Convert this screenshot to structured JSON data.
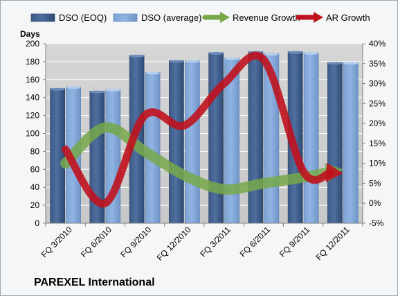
{
  "company_name": "PAREXEL International",
  "colors": {
    "dso_eoq": "#4f6f9f",
    "dso_average": "#8fb4e3",
    "revenue_growth": "#77a84a",
    "ar_growth": "#c0121e",
    "plot_background": "#c8c8c8"
  },
  "chart_data": {
    "type": "bar",
    "categories": [
      "FQ 3/2010",
      "FQ 6/2010",
      "FQ 9/2010",
      "FQ 12/2010",
      "FQ 3/2011",
      "FQ 6/2011",
      "FQ 9/2011",
      "FQ 12/2011"
    ],
    "y_left": {
      "label": "Days",
      "min": 0,
      "max": 200,
      "ticks": [
        "0",
        "20",
        "40",
        "60",
        "80",
        "100",
        "120",
        "140",
        "160",
        "180",
        "200"
      ]
    },
    "y_right": {
      "min": -5,
      "max": 40,
      "ticks": [
        "-5%",
        "0%",
        "5%",
        "10%",
        "15%",
        "20%",
        "25%",
        "30%",
        "35%",
        "40%"
      ]
    },
    "series": [
      {
        "name": "DSO (EOQ)",
        "kind": "bar",
        "axis": "left",
        "values": [
          150,
          147,
          187,
          181,
          190,
          191,
          191,
          179
        ]
      },
      {
        "name": "DSO (average)",
        "kind": "bar",
        "axis": "left",
        "values": [
          152,
          149,
          168,
          181,
          184,
          189,
          190,
          179
        ]
      },
      {
        "name": "Revenue Growth",
        "kind": "line",
        "axis": "right",
        "values": [
          10,
          19,
          13,
          7,
          3.5,
          5,
          6.5,
          8.5
        ]
      },
      {
        "name": "AR Growth",
        "kind": "line",
        "axis": "right",
        "values": [
          13.5,
          0,
          22,
          19.5,
          30,
          36,
          8,
          7.5
        ]
      }
    ],
    "grid": true,
    "legend_position": "top"
  }
}
